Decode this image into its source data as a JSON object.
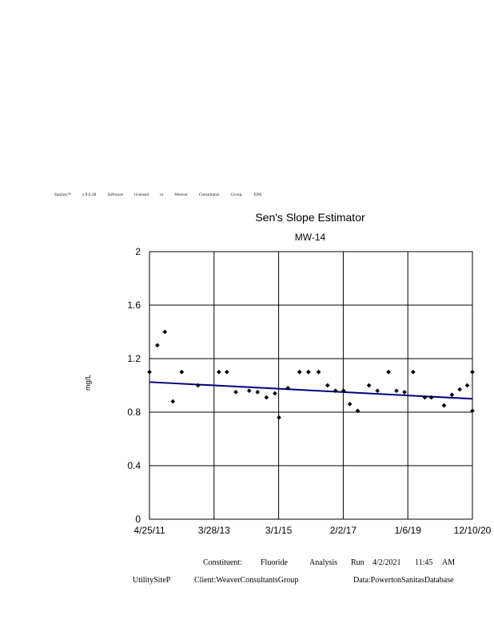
{
  "license_line": [
    "Sanitas™",
    "v.9.6.28",
    "Software",
    "licensed",
    "to",
    "Weaver",
    "Consultants",
    "Group.",
    "EPA"
  ],
  "footer": {
    "line1": [
      "Constituent:",
      "Fluoride",
      "Analysis",
      "Run",
      "4/2/2021",
      "11:45",
      "AM"
    ],
    "line2_left": "UtilitySiteP",
    "line2_mid": "Client:WeaverConsultantsGroup",
    "line2_right": "Data:PowertonSanitasDatabase"
  },
  "chart_data": {
    "type": "scatter",
    "title": "Sen's Slope Estimator",
    "subtitle": "MW-14",
    "ylabel": "mg/L",
    "xlabel": "",
    "ylim": [
      0,
      2
    ],
    "y_ticks": [
      "0",
      "0.4",
      "0.8",
      "1.2",
      "1.6",
      "2"
    ],
    "x_ticks": [
      "4/25/11",
      "3/28/13",
      "3/1/15",
      "2/2/17",
      "1/6/19",
      "12/10/20"
    ],
    "xlim": [
      "4/25/11",
      "12/10/20"
    ],
    "grid": true,
    "points": [
      {
        "x": "2011-04-25",
        "y": 1.1
      },
      {
        "x": "2011-07-20",
        "y": 1.3
      },
      {
        "x": "2011-10-10",
        "y": 1.4
      },
      {
        "x": "2012-01-05",
        "y": 0.88
      },
      {
        "x": "2012-04-10",
        "y": 1.1
      },
      {
        "x": "2012-10-05",
        "y": 1.0
      },
      {
        "x": "2013-05-20",
        "y": 1.1
      },
      {
        "x": "2013-08-15",
        "y": 1.1
      },
      {
        "x": "2013-11-20",
        "y": 0.95
      },
      {
        "x": "2014-04-15",
        "y": 0.96
      },
      {
        "x": "2014-07-15",
        "y": 0.95
      },
      {
        "x": "2014-10-20",
        "y": 0.91
      },
      {
        "x": "2015-01-20",
        "y": 0.94
      },
      {
        "x": "2015-03-05",
        "y": 0.76
      },
      {
        "x": "2015-06-10",
        "y": 0.98
      },
      {
        "x": "2015-10-15",
        "y": 1.1
      },
      {
        "x": "2016-01-20",
        "y": 1.1
      },
      {
        "x": "2016-05-10",
        "y": 1.1
      },
      {
        "x": "2016-08-15",
        "y": 1.0
      },
      {
        "x": "2016-11-10",
        "y": 0.96
      },
      {
        "x": "2017-02-05",
        "y": 0.96
      },
      {
        "x": "2017-04-15",
        "y": 0.86
      },
      {
        "x": "2017-07-10",
        "y": 0.81
      },
      {
        "x": "2017-11-10",
        "y": 1.0
      },
      {
        "x": "2018-02-10",
        "y": 0.96
      },
      {
        "x": "2018-06-10",
        "y": 1.1
      },
      {
        "x": "2018-09-05",
        "y": 0.96
      },
      {
        "x": "2018-12-01",
        "y": 0.95
      },
      {
        "x": "2019-03-05",
        "y": 1.1
      },
      {
        "x": "2019-07-10",
        "y": 0.91
      },
      {
        "x": "2019-09-20",
        "y": 0.91
      },
      {
        "x": "2020-02-05",
        "y": 0.85
      },
      {
        "x": "2020-05-01",
        "y": 0.93
      },
      {
        "x": "2020-07-25",
        "y": 0.97
      },
      {
        "x": "2020-10-15",
        "y": 1.0
      },
      {
        "x": "2021-01-25",
        "y": 0.81
      },
      {
        "x": "2021-12-10",
        "y": 1.1
      }
    ],
    "trend_line": [
      {
        "x": "4/25/11",
        "y": 1.025
      },
      {
        "x": "12/10/20",
        "y": 0.9
      }
    ],
    "colors": {
      "points": "#000000",
      "trend": "#000080",
      "grid": "#000000"
    }
  }
}
